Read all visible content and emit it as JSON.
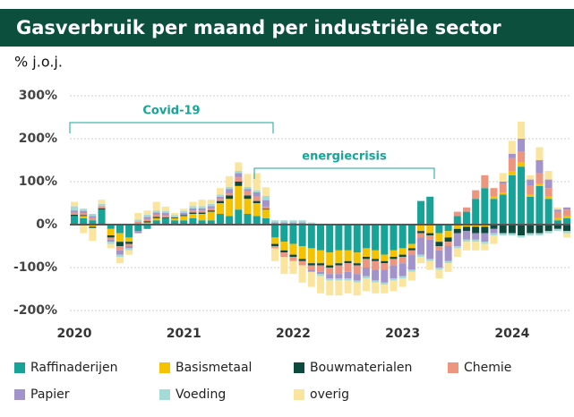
{
  "chart_data": {
    "type": "bar",
    "stacked": true,
    "title": "Gasverbruik per maand per industriële sector",
    "ylabel": "% j.o.j.",
    "annotations": [
      "Covid-19",
      "energiecrisis"
    ],
    "categories": [
      "2020",
      null,
      null,
      null,
      null,
      null,
      null,
      null,
      null,
      null,
      null,
      null,
      "2021",
      null,
      null,
      null,
      null,
      null,
      null,
      null,
      null,
      null,
      null,
      null,
      "2022",
      null,
      null,
      null,
      null,
      null,
      null,
      null,
      null,
      null,
      null,
      null,
      "2023",
      null,
      null,
      null,
      null,
      null,
      null,
      null,
      null,
      null,
      null,
      null,
      "2024",
      null,
      null,
      null,
      null,
      null,
      null
    ],
    "series": [
      {
        "name": "Raffinaderijen",
        "color": "#17a397",
        "values": [
          20,
          15,
          10,
          35,
          -10,
          -20,
          -30,
          -15,
          -10,
          10,
          15,
          10,
          10,
          15,
          10,
          10,
          25,
          20,
          35,
          25,
          20,
          15,
          -30,
          -40,
          -45,
          -50,
          -55,
          -60,
          -65,
          -60,
          -60,
          -65,
          -55,
          -60,
          -70,
          -60,
          -55,
          -45,
          55,
          65,
          -20,
          -15,
          20,
          30,
          60,
          85,
          60,
          70,
          115,
          135,
          65,
          90,
          60,
          10,
          15
        ]
      },
      {
        "name": "Basismetaal",
        "color": "#f5c200",
        "values": [
          0,
          5,
          -5,
          0,
          -15,
          -20,
          -10,
          0,
          5,
          5,
          0,
          5,
          10,
          10,
          15,
          20,
          25,
          40,
          55,
          35,
          30,
          20,
          -15,
          -20,
          -25,
          -30,
          -35,
          -30,
          -30,
          -30,
          -25,
          -25,
          -20,
          -20,
          -15,
          -15,
          -15,
          -10,
          -15,
          -20,
          -20,
          -15,
          -10,
          -5,
          -5,
          -5,
          5,
          5,
          10,
          10,
          5,
          5,
          5,
          5,
          5
        ]
      },
      {
        "name": "Bouwmaterialen",
        "color": "#0b4a3d",
        "values": [
          3,
          2,
          -3,
          3,
          -5,
          -10,
          -5,
          2,
          3,
          3,
          2,
          2,
          2,
          3,
          3,
          3,
          5,
          8,
          10,
          8,
          5,
          2,
          -5,
          -5,
          -5,
          -5,
          -5,
          -5,
          -5,
          -5,
          -5,
          -5,
          -5,
          -5,
          -5,
          -5,
          -5,
          -5,
          -5,
          -5,
          -10,
          -10,
          -10,
          -10,
          -15,
          -15,
          -10,
          -20,
          -20,
          -25,
          -20,
          -20,
          -15,
          -10,
          -15
        ]
      },
      {
        "name": "Chemie",
        "color": "#ee9580",
        "values": [
          5,
          5,
          5,
          5,
          -5,
          -10,
          -5,
          5,
          5,
          5,
          5,
          0,
          0,
          5,
          5,
          5,
          5,
          5,
          10,
          10,
          10,
          5,
          -5,
          -10,
          -10,
          -10,
          -10,
          -15,
          -15,
          -20,
          -20,
          -20,
          -20,
          -20,
          -15,
          -15,
          -15,
          -10,
          -10,
          -10,
          -10,
          -10,
          10,
          10,
          20,
          30,
          20,
          20,
          30,
          25,
          20,
          25,
          20,
          15,
          15
        ]
      },
      {
        "name": "Papier",
        "color": "#a293cc",
        "values": [
          5,
          5,
          5,
          0,
          -5,
          -10,
          -5,
          -5,
          5,
          5,
          5,
          0,
          5,
          5,
          5,
          5,
          5,
          10,
          10,
          5,
          10,
          15,
          5,
          5,
          5,
          5,
          -5,
          -5,
          -10,
          -10,
          -15,
          -15,
          -20,
          -25,
          -30,
          -30,
          -30,
          -35,
          -40,
          -45,
          -40,
          -35,
          -30,
          -20,
          -15,
          -20,
          -10,
          5,
          10,
          30,
          15,
          30,
          20,
          5,
          5
        ]
      },
      {
        "name": "Voeding",
        "color": "#a5dbd6",
        "values": [
          10,
          5,
          5,
          5,
          -5,
          -5,
          -5,
          5,
          5,
          5,
          5,
          5,
          5,
          5,
          5,
          5,
          5,
          5,
          5,
          5,
          5,
          10,
          5,
          5,
          5,
          5,
          5,
          -5,
          -5,
          -5,
          -5,
          -5,
          -5,
          -5,
          -5,
          -5,
          -5,
          -5,
          -5,
          -5,
          -5,
          -5,
          -5,
          -5,
          -5,
          -5,
          -5,
          -5,
          -5,
          -5,
          -5,
          -5,
          -5,
          -5,
          -5
        ]
      },
      {
        "name": "overig",
        "color": "#fbe59e",
        "values": [
          10,
          -20,
          -30,
          10,
          -10,
          -15,
          -10,
          15,
          10,
          20,
          10,
          5,
          5,
          10,
          15,
          10,
          15,
          25,
          20,
          30,
          40,
          20,
          -30,
          -40,
          -30,
          -40,
          -35,
          -40,
          -35,
          -35,
          -30,
          -30,
          -30,
          -25,
          -20,
          -25,
          -20,
          -20,
          -15,
          -20,
          -20,
          -20,
          -20,
          -20,
          -20,
          -15,
          -20,
          20,
          30,
          40,
          10,
          30,
          20,
          5,
          -10
        ]
      }
    ],
    "ylim": [
      -200,
      300
    ],
    "yticks": [
      {
        "value": -200,
        "label": "-200%"
      },
      {
        "value": -100,
        "label": "-100%"
      },
      {
        "value": 0,
        "label": "0%"
      },
      {
        "value": 100,
        "label": "100%"
      },
      {
        "value": 200,
        "label": "200%"
      },
      {
        "value": 300,
        "label": "300%"
      }
    ],
    "grid": true
  }
}
